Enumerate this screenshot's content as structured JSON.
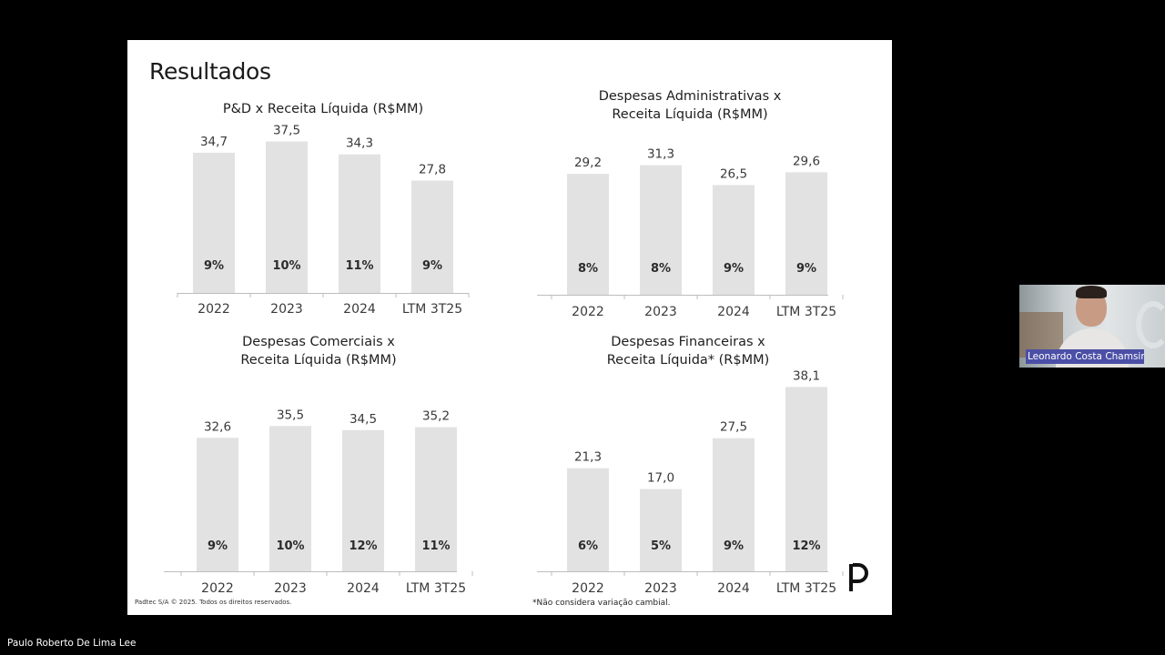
{
  "slide": {
    "title": "Resultados",
    "footer_copyright": "Padtec S/A © 2025. Todos os direitos reservados.",
    "footer_note": "*Não considera variação cambial."
  },
  "presenter": {
    "name": "Leonardo Costa Chamsin"
  },
  "viewer": {
    "name": "Paulo Roberto De Lima Lee"
  },
  "colors": {
    "bar": "#e2e2e2",
    "axis": "#bdbdbd",
    "label": "#3a3a3a",
    "pct": "#2b2b2b",
    "presenter_tag": "#4b4fa6"
  },
  "chart_data": [
    {
      "type": "bar",
      "title_lines": [
        "P&D x Receita Líquida (R$MM)"
      ],
      "categories": [
        "2022",
        "2023",
        "2024",
        "LTM 3T25"
      ],
      "values": [
        34.7,
        37.5,
        34.3,
        27.8
      ],
      "value_labels": [
        "34,7",
        "37,5",
        "34,3",
        "27,8"
      ],
      "pct_labels": [
        "9%",
        "10%",
        "11%",
        "9%"
      ]
    },
    {
      "type": "bar",
      "title_lines": [
        "Despesas Administrativas x",
        "Receita Líquida (R$MM)"
      ],
      "categories": [
        "2022",
        "2023",
        "2024",
        "LTM 3T25"
      ],
      "values": [
        29.2,
        31.3,
        26.5,
        29.6
      ],
      "value_labels": [
        "29,2",
        "31,3",
        "26,5",
        "29,6"
      ],
      "pct_labels": [
        "8%",
        "8%",
        "9%",
        "9%"
      ]
    },
    {
      "type": "bar",
      "title_lines": [
        "Despesas Comerciais x",
        "Receita Líquida (R$MM)"
      ],
      "categories": [
        "2022",
        "2023",
        "2024",
        "LTM 3T25"
      ],
      "values": [
        32.6,
        35.5,
        34.5,
        35.2
      ],
      "value_labels": [
        "32,6",
        "35,5",
        "34,5",
        "35,2"
      ],
      "pct_labels": [
        "9%",
        "10%",
        "12%",
        "11%"
      ]
    },
    {
      "type": "bar",
      "title_lines": [
        "Despesas Financeiras x",
        "Receita Líquida* (R$MM)"
      ],
      "categories": [
        "2022",
        "2023",
        "2024",
        "LTM 3T25"
      ],
      "values": [
        21.3,
        17.0,
        27.5,
        38.1
      ],
      "value_labels": [
        "21,3",
        "17,0",
        "27,5",
        "38,1"
      ],
      "pct_labels": [
        "6%",
        "5%",
        "9%",
        "12%"
      ]
    }
  ]
}
